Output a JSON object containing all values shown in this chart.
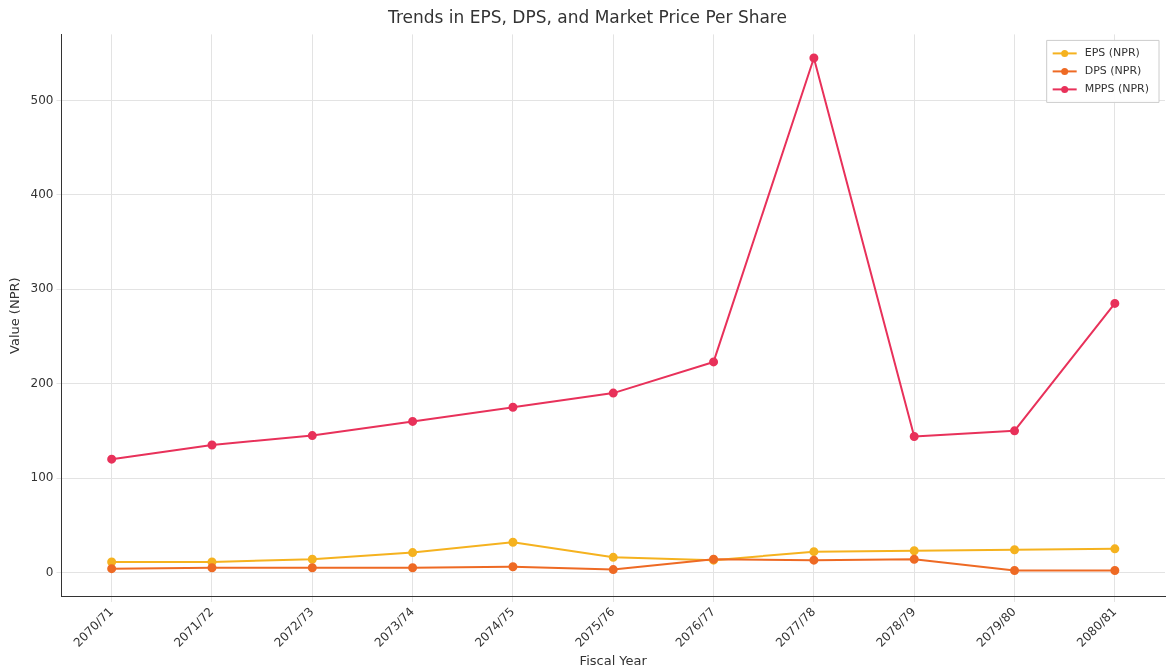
{
  "chart_data": {
    "type": "line",
    "title": "Trends in EPS, DPS, and Market Price Per Share",
    "xlabel": "Fiscal Year",
    "ylabel": "Value (NPR)",
    "categories": [
      "2070/71",
      "2071/72",
      "2072/73",
      "2073/74",
      "2074/75",
      "2075/76",
      "2076/77",
      "2077/78",
      "2078/79",
      "2079/80",
      "2080/81"
    ],
    "series": [
      {
        "name": "EPS (NPR)",
        "color": "#f5b21f",
        "values": [
          11,
          11,
          14,
          21,
          32,
          16,
          13,
          22,
          23,
          24,
          25
        ]
      },
      {
        "name": "DPS (NPR)",
        "color": "#ee6a24",
        "values": [
          4,
          5,
          5,
          5,
          6,
          3,
          14,
          13,
          14,
          2,
          2
        ]
      },
      {
        "name": "MPPS (NPR)",
        "color": "#e8315a",
        "values": [
          120,
          135,
          145,
          160,
          175,
          190,
          223,
          545,
          144,
          150,
          285
        ]
      }
    ],
    "ylim": [
      -26,
      570
    ],
    "yticks": [
      0,
      100,
      200,
      300,
      400,
      500
    ],
    "grid": true,
    "legend": "top right",
    "marker": "circle",
    "line_style": "solid"
  }
}
